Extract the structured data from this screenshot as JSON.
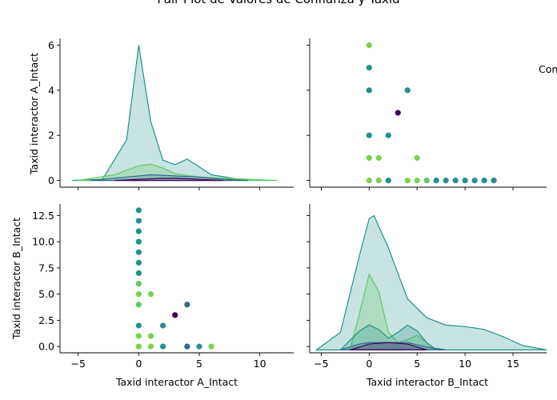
{
  "chart_data": {
    "type": "scatter",
    "title": "Pair Plot de Valores de Confianza y Taxid",
    "legend": {
      "placement": "right",
      "visible_text": "Con"
    },
    "grid": false,
    "variables": [
      "Taxid interactor A_Intact",
      "Taxid interactor B_Intact"
    ],
    "colors": {
      "dark_purple": "#440154",
      "blue": "#31688e",
      "teal": "#21918c",
      "green": "#5ec962",
      "yellow_green": "#7ad151"
    },
    "panels": [
      {
        "row": 0,
        "col": 0,
        "kind": "kde",
        "ylabel": "Taxid interactor A_Intact",
        "xlim": [
          -6.5,
          12.8
        ],
        "ylim": [
          -0.3,
          6.3
        ],
        "yticks": [
          "0",
          "2",
          "4",
          "6"
        ],
        "xticks": [
          -5,
          0,
          5,
          10
        ],
        "curves": [
          {
            "color": "teal",
            "peak": 6.0,
            "points": [
              [
                -5.5,
                0.0
              ],
              [
                -3,
                0.05
              ],
              [
                -1,
                1.8
              ],
              [
                0,
                6.0
              ],
              [
                1,
                2.6
              ],
              [
                2,
                0.9
              ],
              [
                3,
                0.7
              ],
              [
                4,
                0.95
              ],
              [
                5,
                0.6
              ],
              [
                6,
                0.25
              ],
              [
                8,
                0.08
              ],
              [
                9.5,
                0.0
              ]
            ]
          },
          {
            "color": "green",
            "peak": 0.75,
            "points": [
              [
                -5,
                0.0
              ],
              [
                -2,
                0.25
              ],
              [
                0,
                0.65
              ],
              [
                1,
                0.72
              ],
              [
                2,
                0.55
              ],
              [
                3,
                0.3
              ],
              [
                5,
                0.15
              ],
              [
                7,
                0.1
              ],
              [
                9,
                0.05
              ],
              [
                11.5,
                0.0
              ]
            ]
          },
          {
            "color": "blue",
            "peak": 0.25,
            "points": [
              [
                -4,
                0.0
              ],
              [
                -1,
                0.15
              ],
              [
                1,
                0.25
              ],
              [
                3,
                0.2
              ],
              [
                5,
                0.15
              ],
              [
                7,
                0.05
              ],
              [
                9,
                0.0
              ]
            ]
          },
          {
            "color": "dark_purple",
            "peak": 0.1,
            "points": [
              [
                -2,
                0.0
              ],
              [
                0,
                0.05
              ],
              [
                2,
                0.1
              ],
              [
                3,
                0.1
              ],
              [
                5,
                0.05
              ],
              [
                7,
                0.0
              ]
            ]
          }
        ]
      },
      {
        "row": 0,
        "col": 1,
        "kind": "scatter",
        "xlim": [
          -6.2,
          18.5
        ],
        "ylim": [
          -0.3,
          6.3
        ],
        "points": [
          {
            "x": 0,
            "y": 6,
            "color": "yellow_green"
          },
          {
            "x": 0,
            "y": 5,
            "color": "teal"
          },
          {
            "x": 0,
            "y": 4,
            "color": "teal"
          },
          {
            "x": 4,
            "y": 4,
            "color": "teal"
          },
          {
            "x": 3,
            "y": 3,
            "color": "dark_purple"
          },
          {
            "x": 0,
            "y": 2,
            "color": "teal"
          },
          {
            "x": 2,
            "y": 2,
            "color": "teal"
          },
          {
            "x": 0,
            "y": 1,
            "color": "yellow_green"
          },
          {
            "x": 1,
            "y": 1,
            "color": "yellow_green"
          },
          {
            "x": 5,
            "y": 1,
            "color": "yellow_green"
          },
          {
            "x": 0,
            "y": 0,
            "color": "yellow_green"
          },
          {
            "x": 1,
            "y": 0,
            "color": "yellow_green"
          },
          {
            "x": 2,
            "y": 0,
            "color": "teal"
          },
          {
            "x": 4,
            "y": 0,
            "color": "yellow_green"
          },
          {
            "x": 5,
            "y": 0,
            "color": "yellow_green"
          },
          {
            "x": 6,
            "y": 0,
            "color": "green"
          },
          {
            "x": 7,
            "y": 0,
            "color": "teal"
          },
          {
            "x": 8,
            "y": 0,
            "color": "teal"
          },
          {
            "x": 9,
            "y": 0,
            "color": "teal"
          },
          {
            "x": 10,
            "y": 0,
            "color": "teal"
          },
          {
            "x": 11,
            "y": 0,
            "color": "teal"
          },
          {
            "x": 12,
            "y": 0,
            "color": "teal"
          },
          {
            "x": 13,
            "y": 0,
            "color": "teal"
          }
        ]
      },
      {
        "row": 1,
        "col": 0,
        "kind": "scatter",
        "xlabel": "Taxid interactor A_Intact",
        "ylabel": "Taxid interactor B_Intact",
        "xlim": [
          -6.5,
          12.8
        ],
        "ylim": [
          -0.6,
          13.6
        ],
        "xticks": [
          "−5",
          "0",
          "5",
          "10"
        ],
        "yticks": [
          "0.0",
          "2.5",
          "5.0",
          "7.5",
          "10.0",
          "12.5"
        ],
        "points": [
          {
            "x": 0,
            "y": 13,
            "color": "teal"
          },
          {
            "x": 0,
            "y": 12,
            "color": "teal"
          },
          {
            "x": 0,
            "y": 11,
            "color": "teal"
          },
          {
            "x": 0,
            "y": 10,
            "color": "teal"
          },
          {
            "x": 0,
            "y": 9,
            "color": "teal"
          },
          {
            "x": 0,
            "y": 8,
            "color": "teal"
          },
          {
            "x": 0,
            "y": 7,
            "color": "teal"
          },
          {
            "x": 0,
            "y": 6,
            "color": "green"
          },
          {
            "x": 0,
            "y": 5,
            "color": "yellow_green"
          },
          {
            "x": 1,
            "y": 5,
            "color": "yellow_green"
          },
          {
            "x": 0,
            "y": 4,
            "color": "green"
          },
          {
            "x": 4,
            "y": 4,
            "color": "blue"
          },
          {
            "x": 3,
            "y": 3,
            "color": "dark_purple"
          },
          {
            "x": 0,
            "y": 2,
            "color": "teal"
          },
          {
            "x": 2,
            "y": 2,
            "color": "teal"
          },
          {
            "x": 0,
            "y": 1,
            "color": "yellow_green"
          },
          {
            "x": 1,
            "y": 1,
            "color": "yellow_green"
          },
          {
            "x": 0,
            "y": 0,
            "color": "yellow_green"
          },
          {
            "x": 1,
            "y": 0,
            "color": "yellow_green"
          },
          {
            "x": 2,
            "y": 0,
            "color": "teal"
          },
          {
            "x": 4,
            "y": 0,
            "color": "blue"
          },
          {
            "x": 5,
            "y": 0,
            "color": "teal"
          },
          {
            "x": 6,
            "y": 0,
            "color": "yellow_green"
          }
        ]
      },
      {
        "row": 1,
        "col": 1,
        "kind": "kde",
        "xlabel": "Taxid interactor B_Intact",
        "xlim": [
          -6.2,
          18.5
        ],
        "ylim": [
          -0.02,
          1.0
        ],
        "xticks": [
          "−5",
          "0",
          "5",
          "10",
          "15"
        ],
        "curves": [
          {
            "color": "teal",
            "peak": 0.92,
            "points": [
              [
                -5.5,
                0.0
              ],
              [
                -3,
                0.12
              ],
              [
                -1,
                0.65
              ],
              [
                0,
                0.9
              ],
              [
                0.5,
                0.92
              ],
              [
                2,
                0.7
              ],
              [
                4,
                0.35
              ],
              [
                6,
                0.22
              ],
              [
                8,
                0.17
              ],
              [
                10,
                0.16
              ],
              [
                12,
                0.14
              ],
              [
                14,
                0.09
              ],
              [
                16,
                0.03
              ],
              [
                18.5,
                0.0
              ]
            ]
          },
          {
            "color": "green",
            "peak": 0.52,
            "points": [
              [
                -2,
                0.0
              ],
              [
                -1,
                0.25
              ],
              [
                0,
                0.52
              ],
              [
                1,
                0.4
              ],
              [
                2,
                0.12
              ],
              [
                3,
                0.05
              ],
              [
                4,
                0.07
              ],
              [
                5,
                0.1
              ],
              [
                6,
                0.05
              ],
              [
                7,
                0.0
              ]
            ]
          },
          {
            "color": "teal",
            "peak": 0.17,
            "points": [
              [
                -3,
                0.0
              ],
              [
                -1,
                0.13
              ],
              [
                0,
                0.17
              ],
              [
                1,
                0.14
              ],
              [
                2,
                0.08
              ],
              [
                3,
                0.12
              ],
              [
                4,
                0.17
              ],
              [
                5,
                0.13
              ],
              [
                6,
                0.05
              ],
              [
                7,
                0.0
              ]
            ]
          },
          {
            "color": "blue",
            "peak": 0.05,
            "points": [
              [
                -3,
                0.0
              ],
              [
                -1,
                0.04
              ],
              [
                0,
                0.05
              ],
              [
                2,
                0.05
              ],
              [
                4,
                0.05
              ],
              [
                6,
                0.02
              ],
              [
                8,
                0.0
              ]
            ]
          },
          {
            "color": "dark_purple",
            "peak": 0.05,
            "points": [
              [
                -2,
                0.0
              ],
              [
                0,
                0.04
              ],
              [
                2,
                0.05
              ],
              [
                4,
                0.04
              ],
              [
                6,
                0.0
              ]
            ]
          }
        ]
      }
    ]
  }
}
